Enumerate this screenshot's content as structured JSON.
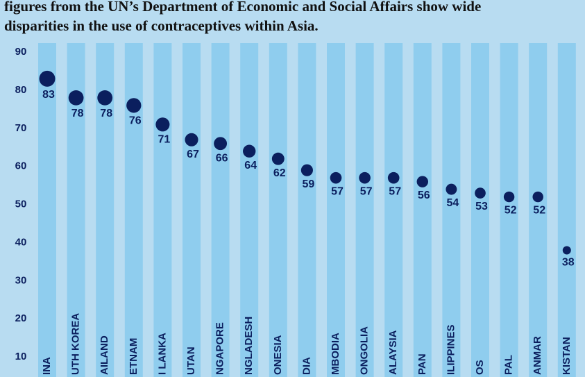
{
  "chart_data": {
    "type": "dot",
    "subtitle": [
      "figures from the UN’s Department of Economic and Social Affairs show wide",
      "disparities in the use of contraceptives within Asia."
    ],
    "categories": [
      "INA",
      "UTH KOREA",
      "AILAND",
      "ETNAM",
      "I LANKA",
      "UTAN",
      "NGAPORE",
      "NGLADESH",
      "ONESIA",
      "DIA",
      "MBODIA",
      "ONGOLIA",
      "ALAYSIA",
      "PAN",
      "ILIPPINES",
      "OS",
      "PAL",
      "ANMAR",
      "KISTAN"
    ],
    "values": [
      83,
      78,
      78,
      76,
      71,
      67,
      66,
      64,
      62,
      59,
      57,
      57,
      57,
      56,
      54,
      53,
      52,
      52,
      38
    ],
    "color": "#0b1f5e",
    "ylim": [
      5,
      90
    ],
    "yticks": [
      10,
      20,
      30,
      40,
      50,
      60,
      70,
      80,
      90
    ]
  }
}
